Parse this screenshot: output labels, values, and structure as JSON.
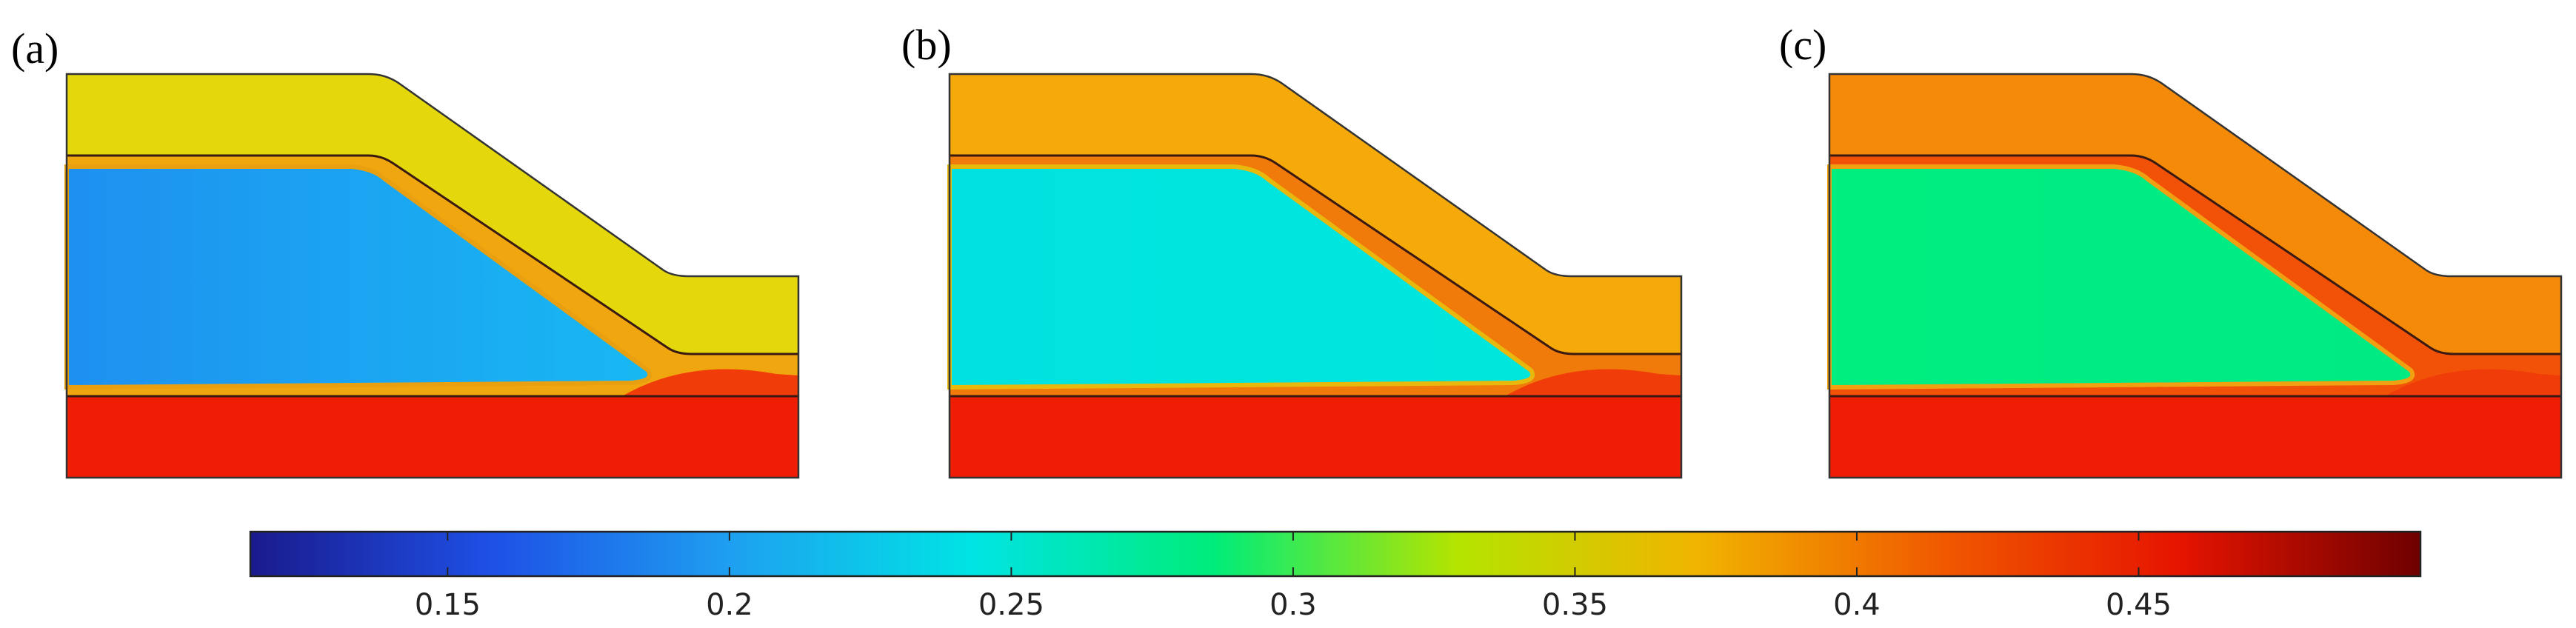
{
  "panels": [
    {
      "label": "(a)",
      "colors": {
        "top_layer": "#e4d80c",
        "middle_layer": "#f0a60e",
        "core_from": "#1e90f0",
        "core_to": "#18b8f2",
        "core_edge": "#e8a010",
        "bottom_layer": "#ee1d04",
        "toe_bulb": "#f03c08"
      }
    },
    {
      "label": "(b)",
      "colors": {
        "top_layer": "#f5aa0a",
        "middle_layer": "#f07a0a",
        "core_from": "#00e2e0",
        "core_to": "#00e6dc",
        "core_edge": "#e8b80c",
        "bottom_layer": "#ee1d04",
        "toe_bulb": "#f03c08"
      }
    },
    {
      "label": "(c)",
      "colors": {
        "top_layer": "#f58a08",
        "middle_layer": "#f25208",
        "core_from": "#00ee80",
        "core_to": "#00ea84",
        "core_edge": "#f0a010",
        "bottom_layer": "#ee1d04",
        "toe_bulb": "#f03c08"
      }
    }
  ],
  "colorbar": {
    "min": 0.115,
    "max": 0.5,
    "ticks": [
      {
        "value": 0.15,
        "label": "0.15"
      },
      {
        "value": 0.2,
        "label": "0.2"
      },
      {
        "value": 0.25,
        "label": "0.25"
      },
      {
        "value": 0.3,
        "label": "0.3"
      },
      {
        "value": 0.35,
        "label": "0.35"
      },
      {
        "value": 0.4,
        "label": "0.4"
      },
      {
        "value": 0.45,
        "label": "0.45"
      }
    ],
    "stops": [
      "#1a1a8c",
      "#1e50e6",
      "#1ea0f0",
      "#00e4e4",
      "#00ec7a",
      "#b4e400",
      "#f0b400",
      "#f05a00",
      "#e61400",
      "#6e0000"
    ]
  }
}
